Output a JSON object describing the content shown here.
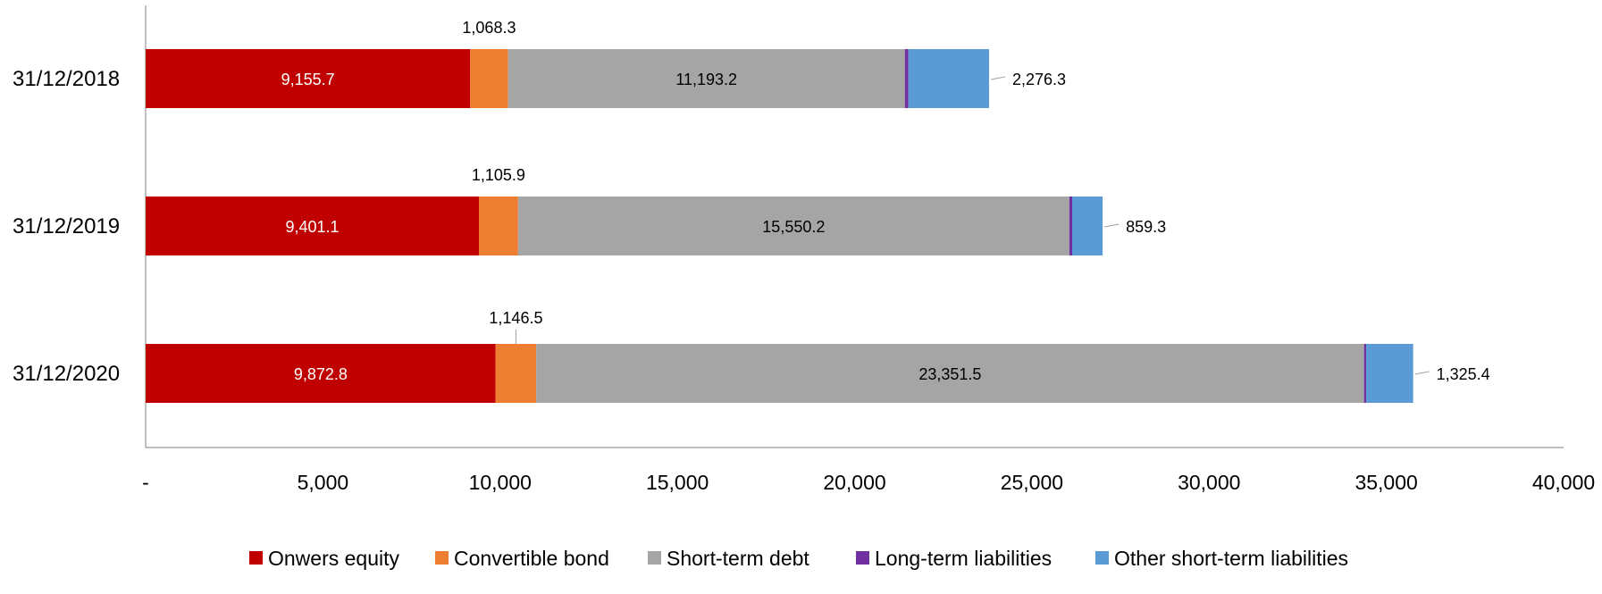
{
  "chart_data": {
    "type": "bar",
    "orientation": "horizontal",
    "stacked": true,
    "title": "",
    "xlabel": "",
    "ylabel": "",
    "xlim": [
      0,
      40000
    ],
    "x_ticks": [
      "-",
      "5,000",
      "10,000",
      "15,000",
      "20,000",
      "25,000",
      "30,000",
      "35,000",
      "40,000"
    ],
    "x_tick_values": [
      0,
      5000,
      10000,
      15000,
      20000,
      25000,
      30000,
      35000,
      40000
    ],
    "grid": false,
    "legend_position": "bottom",
    "categories": [
      "31/12/2018",
      "31/12/2019",
      "31/12/2020"
    ],
    "series": [
      {
        "name": "Onwers equity",
        "color": "#C00000",
        "values": [
          9155.7,
          9401.1,
          9872.8
        ],
        "labels": [
          "9,155.7",
          "9,401.1",
          "9,872.8"
        ]
      },
      {
        "name": "Convertible bond",
        "color": "#ED7D31",
        "values": [
          1068.3,
          1105.9,
          1146.5
        ],
        "labels": [
          "1,068.3",
          "1,105.9",
          "1,146.5"
        ]
      },
      {
        "name": "Short-term debt",
        "color": "#A5A5A5",
        "values": [
          11193.2,
          15550.2,
          23351.5
        ],
        "labels": [
          "11,193.2",
          "15,550.2",
          "23,351.5"
        ]
      },
      {
        "name": "Long-term liabilities",
        "color": "#7030A0",
        "values": [
          100,
          80,
          60
        ],
        "labels": [
          "",
          "",
          ""
        ]
      },
      {
        "name": "Other short-term liabilities",
        "color": "#5B9BD5",
        "values": [
          2276.3,
          859.3,
          1325.4
        ],
        "labels": [
          "2,276.3",
          "859.3",
          "1,325.4"
        ]
      }
    ]
  }
}
